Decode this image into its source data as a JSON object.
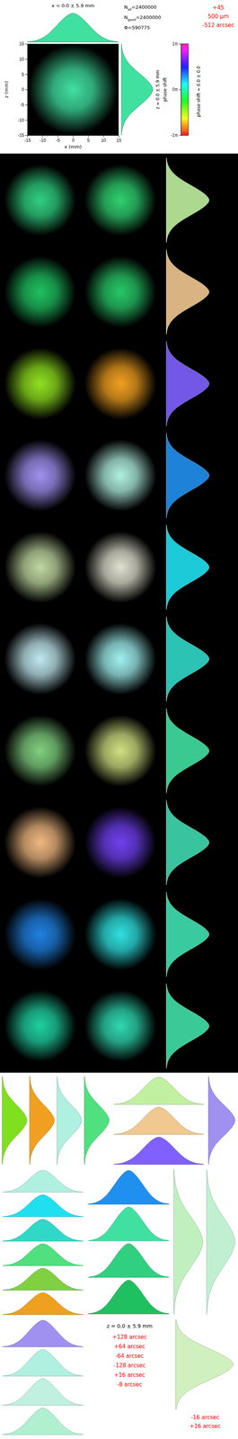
{
  "chart_data": {
    "type": "beam_mosaic",
    "image": {
      "x_title": "x = 0.0 ± 5.9 mm",
      "z_title": "z = 0.0 ± 5.9 mm",
      "x_label": "x (mm)",
      "z_label": "z (mm)",
      "x_mean": 0.0,
      "x_sigma": 5.9,
      "z_mean": 0.0,
      "z_sigma": 5.9,
      "xlim": [
        -15,
        15
      ],
      "zlim": [
        -15,
        15
      ],
      "xticks": [
        -15,
        -10,
        -5,
        0,
        5,
        10,
        15
      ],
      "zticks": [
        -15,
        -10,
        -5,
        0,
        5,
        10,
        15
      ],
      "color": "#40e0a0"
    },
    "profile": {
      "values": [
        0.01,
        0.02,
        0.04,
        0.08,
        0.14,
        0.22,
        0.33,
        0.46,
        0.6,
        0.74,
        0.86,
        0.95,
        1.0,
        0.95,
        0.86,
        0.74,
        0.6,
        0.46,
        0.33,
        0.22,
        0.14,
        0.08,
        0.04,
        0.02,
        0.01
      ],
      "ylim": [
        0,
        1
      ]
    },
    "stats": {
      "separator": "=",
      "items": [
        {
          "symbol": "N",
          "subscript": "all",
          "value": 2400000
        },
        {
          "symbol": "N",
          "subscript": "good",
          "value": 2400000
        },
        {
          "symbol": "Φ",
          "subscript": null,
          "value": 590775
        }
      ]
    },
    "colorbar": {
      "label": "phase shift",
      "range": [
        -1,
        1
      ],
      "ticks": [
        {
          "value": 1,
          "label": "1π"
        },
        {
          "value": 0,
          "label": "0π"
        },
        {
          "value": -1,
          "label": "-1π"
        }
      ],
      "note": "phase shift = 0.0 ± 0.0"
    },
    "header_labels": [
      "+45",
      "500 µm",
      "-512 arcsec"
    ],
    "rows": [
      {
        "colors": [
          "#30d080",
          "#30d070",
          "#c0f0a0"
        ]
      },
      {
        "colors": [
          "#20c060",
          "#28c868",
          "#f0c890"
        ]
      },
      {
        "colors": [
          "#90e020",
          "#f0a020",
          "#8060ff"
        ]
      },
      {
        "colors": [
          "#a090f0",
          "#b0f0e0",
          "#2090f0"
        ]
      },
      {
        "colors": [
          "#c0d8a0",
          "#e0e0d0",
          "#20e0f0"
        ]
      },
      {
        "colors": [
          "#c0e8f0",
          "#a0f0f0",
          "#30d8c8"
        ]
      },
      {
        "colors": [
          "#80d080",
          "#d0e080",
          "#40e0a0"
        ]
      },
      {
        "colors": [
          "#f0b880",
          "#7040f0",
          "#40d8b0"
        ]
      },
      {
        "colors": [
          "#2080e0",
          "#30e0e0",
          "#40e0b0"
        ]
      },
      {
        "colors": [
          "#20d0a0",
          "#30d8b0",
          "#40e0a8"
        ]
      }
    ],
    "x_histograms": {
      "colors": [
        "#c0f0a0",
        "#f0c890",
        "#8060ff",
        "#b0f0e0",
        "#20e0f0",
        "#30d8c8",
        "#50e080",
        "#80d040",
        "#f0a020",
        "#2090f0",
        "#40e0a0",
        "#30d080",
        "#20c060",
        "#a090f0",
        "#b0f0e0",
        "#c0f0e0",
        "#b0f0d0"
      ]
    },
    "z_histograms": {
      "colors": [
        "#80e020",
        "#f0a020",
        "#b0f0e0",
        "#50e080",
        "#a090f0",
        "#c0f0c0",
        "#c0f0d0",
        "#d0f0c0"
      ]
    },
    "annotation_title": "z = 0.0 ± 5.9 mm",
    "annotations": [
      "+128 arcsec",
      "+64 arcsec",
      "-64 arcsec",
      "-128 arcsec",
      "+16 arcsec",
      "-8 arcsec"
    ],
    "footer_labels": [
      "-16 arcsec",
      "+16 arcsec"
    ]
  }
}
